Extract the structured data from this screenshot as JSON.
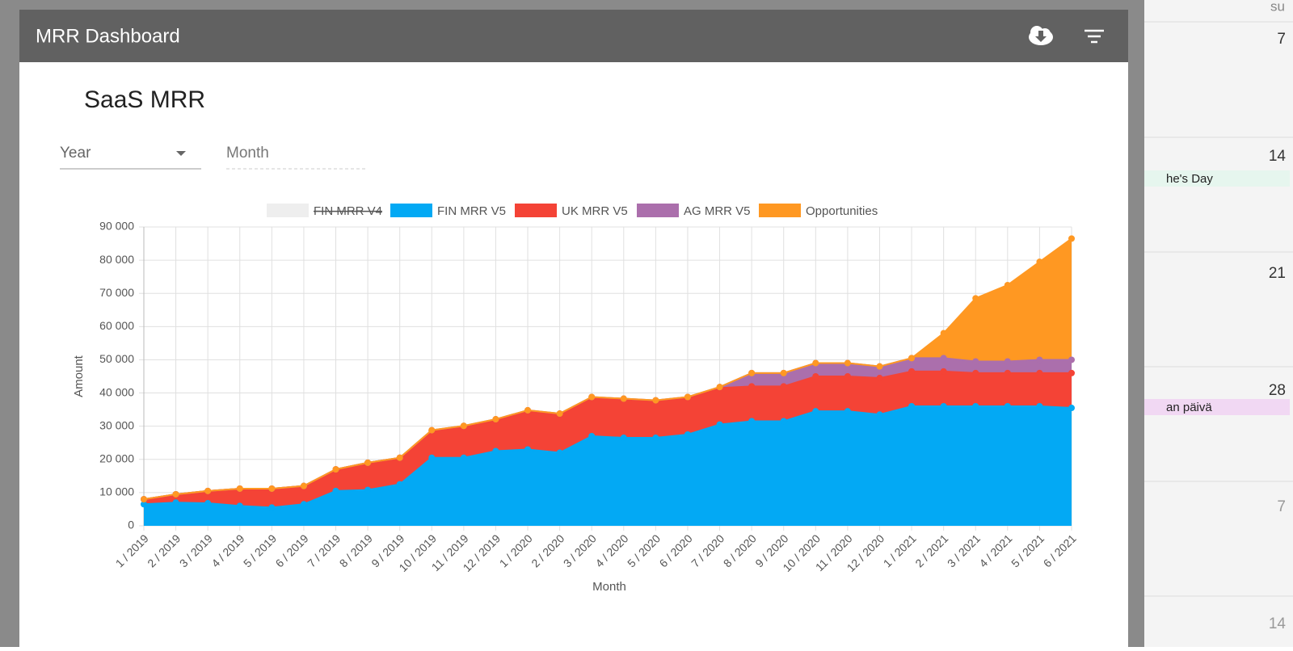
{
  "header": {
    "title": "MRR Dashboard"
  },
  "card": {
    "title": "SaaS MRR",
    "filters": [
      "Year",
      "Month"
    ]
  },
  "calendar": {
    "day_header": "su",
    "days": [
      "7",
      "14",
      "21",
      "28",
      "7",
      "14"
    ],
    "events": [
      "he's Day",
      "an päivä"
    ]
  },
  "chart_data": {
    "type": "stacked-area",
    "categories": [
      "1 / 2019",
      "2 / 2019",
      "3 / 2019",
      "4 / 2019",
      "5 / 2019",
      "6 / 2019",
      "7 / 2019",
      "8 / 2019",
      "9 / 2019",
      "10 / 2019",
      "11 / 2019",
      "12 / 2019",
      "1 / 2020",
      "2 / 2020",
      "3 / 2020",
      "4 / 2020",
      "5 / 2020",
      "6 / 2020",
      "7 / 2020",
      "8 / 2020",
      "9 / 2020",
      "10 / 2020",
      "11 / 2020",
      "12 / 2020",
      "1 / 2021",
      "2 / 2021",
      "3 / 2021",
      "4 / 2021",
      "5 / 2021",
      "6 / 2021"
    ],
    "series": [
      {
        "name": "FIN MRR V4",
        "color": "#eeeeee",
        "hidden": true
      },
      {
        "name": "FIN MRR V5",
        "color": "#03a9f4",
        "values": [
          6500,
          7000,
          6800,
          6000,
          5500,
          6500,
          10500,
          10800,
          12500,
          20500,
          20500,
          22500,
          23000,
          22000,
          27000,
          26500,
          26500,
          27500,
          30500,
          31500,
          31500,
          34500,
          34500,
          33500,
          36000,
          36000,
          36000,
          36000,
          36000,
          35500
        ]
      },
      {
        "name": "UK MRR V5",
        "color": "#f44336",
        "values": [
          1500,
          2500,
          3700,
          5200,
          5700,
          5500,
          6500,
          8200,
          8000,
          8000,
          9300,
          9300,
          11500,
          11500,
          11500,
          11500,
          11000,
          11000,
          11000,
          10500,
          10500,
          10500,
          10500,
          11000,
          10500,
          10500,
          10000,
          10000,
          10000,
          10500
        ]
      },
      {
        "name": "AG MRR V5",
        "color": "#ab6fac",
        "values": [
          0,
          0,
          0,
          0,
          0,
          0,
          0,
          0,
          0,
          300,
          300,
          300,
          300,
          300,
          300,
          300,
          300,
          300,
          300,
          4000,
          4000,
          4000,
          4000,
          3500,
          4000,
          4000,
          3500,
          3500,
          4000,
          4000
        ]
      },
      {
        "name": "Opportunities",
        "color": "#ff9822",
        "values": [
          0,
          0,
          0,
          0,
          0,
          0,
          0,
          0,
          0,
          0,
          0,
          0,
          0,
          0,
          0,
          0,
          0,
          0,
          0,
          0,
          0,
          0,
          0,
          0,
          0,
          7500,
          19000,
          23000,
          29500,
          36500
        ]
      }
    ],
    "ylim": [
      0,
      90000
    ],
    "yticks": [
      0,
      {
        "value": 10000,
        "label": "10 000"
      },
      {
        "value": 20000,
        "label": "20 000"
      },
      {
        "value": 30000,
        "label": "30 000"
      },
      {
        "value": 40000,
        "label": "40 000"
      },
      {
        "value": 50000,
        "label": "50 000"
      },
      {
        "value": 60000,
        "label": "60 000"
      },
      {
        "value": 70000,
        "label": "70 000"
      },
      {
        "value": 80000,
        "label": "80 000"
      },
      {
        "value": 90000,
        "label": "90 000"
      }
    ],
    "y_label": "Amount",
    "x_label": "Month",
    "grid": true,
    "legend": "top"
  }
}
